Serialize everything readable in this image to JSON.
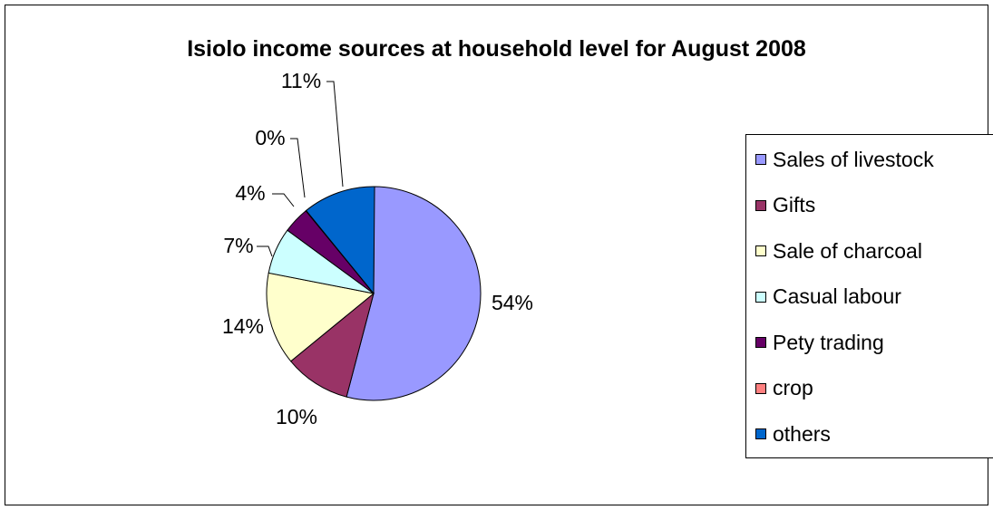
{
  "chart_data": {
    "type": "pie",
    "title": "Isiolo income sources at household level for August 2008",
    "categories": [
      "Sales of livestock",
      "Gifts",
      "Sale of charcoal",
      "Casual labour",
      "Pety trading",
      "crop",
      "others"
    ],
    "values": [
      54,
      10,
      14,
      7,
      4,
      0,
      11
    ],
    "data_labels": [
      "54%",
      "10%",
      "14%",
      "7%",
      "4%",
      "0%",
      "11%"
    ],
    "colors": [
      "#9999FF",
      "#993366",
      "#FFFFCC",
      "#CCFFFF",
      "#660066",
      "#FF8080",
      "#0066CC"
    ],
    "legend_position": "right"
  }
}
